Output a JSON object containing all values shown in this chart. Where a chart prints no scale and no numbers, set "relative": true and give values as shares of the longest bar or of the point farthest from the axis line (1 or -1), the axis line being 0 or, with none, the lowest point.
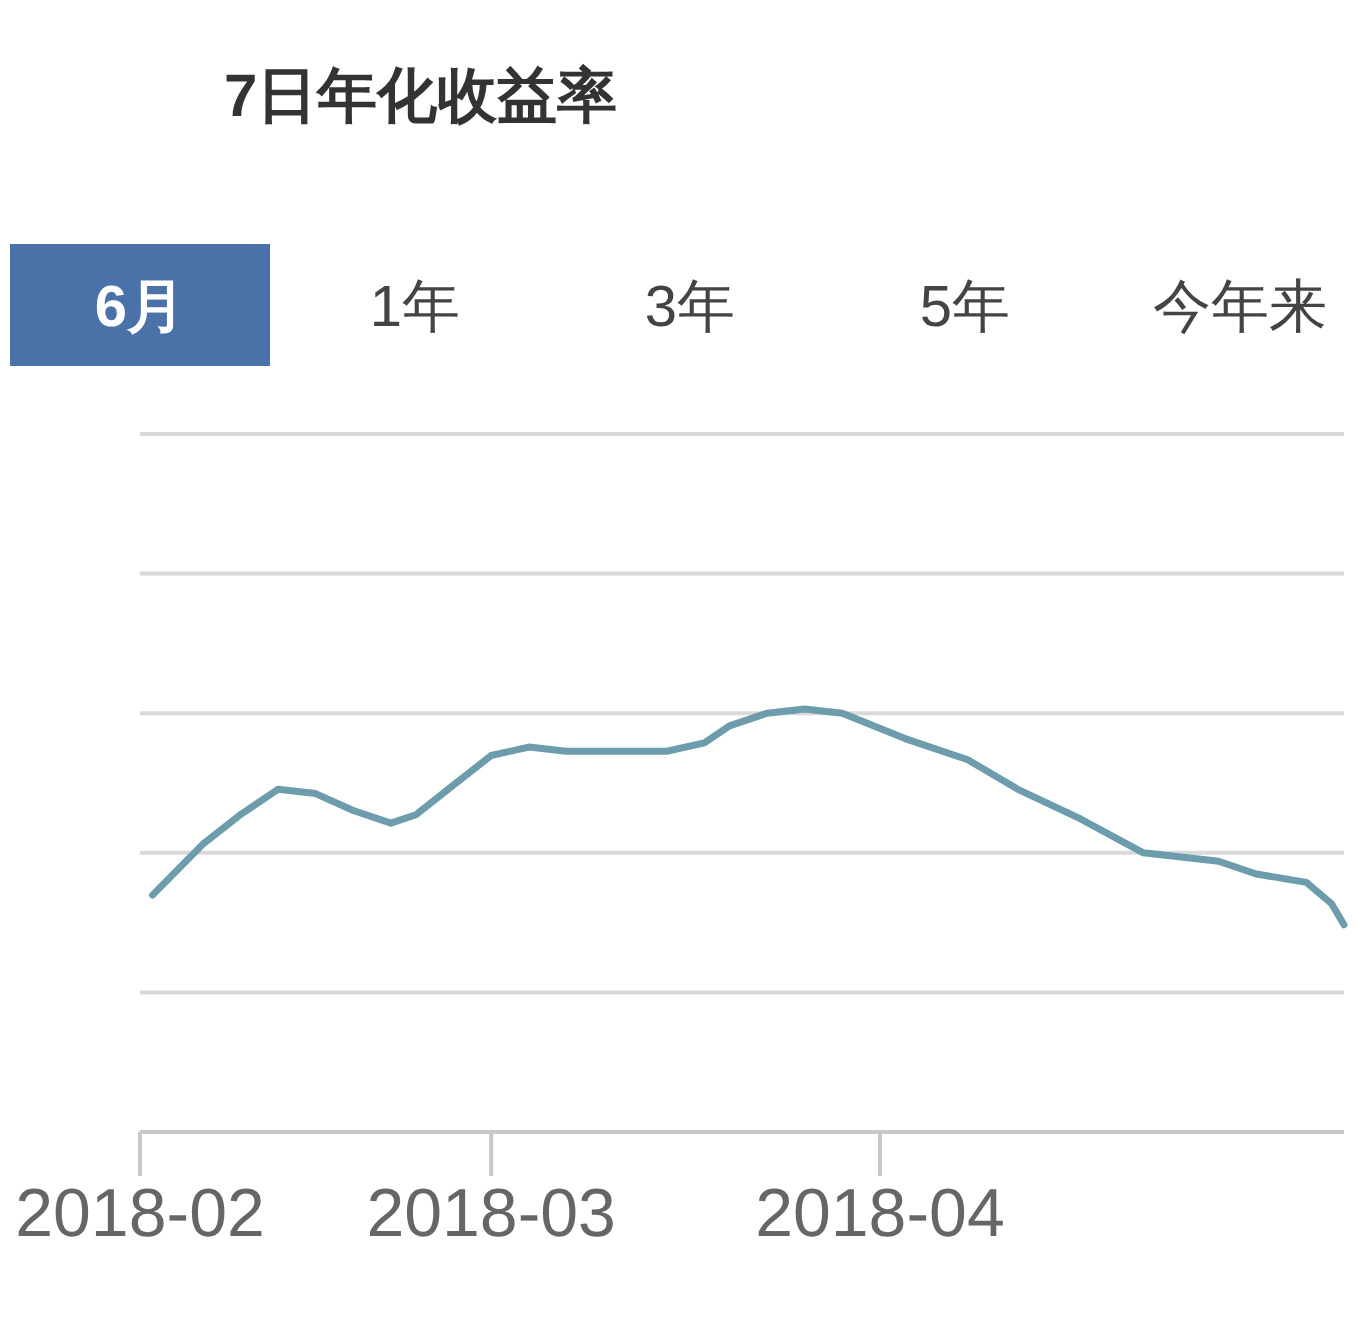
{
  "chart_data": {
    "type": "line",
    "title": "7日年化收益率",
    "annotations": [
      "6月",
      "1年",
      "3年",
      "5年",
      "今年来"
    ],
    "x": [
      "2018-02-02",
      "2018-02-06",
      "2018-02-09",
      "2018-02-12",
      "2018-02-15",
      "2018-02-18",
      "2018-02-21",
      "2018-02-23",
      "2018-02-26",
      "2018-03-01",
      "2018-03-04",
      "2018-03-07",
      "2018-03-11",
      "2018-03-15",
      "2018-03-18",
      "2018-03-20",
      "2018-03-23",
      "2018-03-26",
      "2018-03-29",
      "2018-04-03",
      "2018-04-08",
      "2018-04-12",
      "2018-04-17",
      "2018-04-22",
      "2018-04-28",
      "2018-05-01",
      "2018-05-05",
      "2018-05-07",
      "2018-05-08"
    ],
    "series": [
      {
        "color": "#6d9cac",
        "values": [
          0.56,
          0.68,
          0.75,
          0.81,
          0.8,
          0.76,
          0.73,
          0.75,
          0.82,
          0.89,
          0.91,
          0.9,
          0.9,
          0.9,
          0.92,
          0.96,
          0.99,
          1.0,
          0.99,
          0.93,
          0.88,
          0.81,
          0.74,
          0.66,
          0.64,
          0.61,
          0.59,
          0.54,
          0.49
        ]
      }
    ],
    "relative": true,
    "xlim": [
      "2018-02-01",
      "2018-05-08"
    ],
    "xticks": [
      "2018-02",
      "2018-03",
      "2018-04"
    ],
    "ref_lines": [
      {
        "axis": "y",
        "value": 0.33,
        "color": "#d9d9d9"
      },
      {
        "axis": "y",
        "value": 0.66,
        "color": "#d9d9d9"
      },
      {
        "axis": "y",
        "value": 0.99,
        "color": "#d9d9d9"
      },
      {
        "axis": "y",
        "value": 1.32,
        "color": "#d9d9d9"
      },
      {
        "axis": "y",
        "value": 1.65,
        "color": "#d9d9d9"
      }
    ]
  }
}
